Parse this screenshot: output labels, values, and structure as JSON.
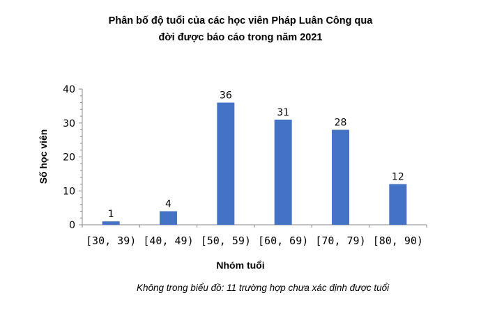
{
  "chart_data": {
    "type": "bar",
    "title_lines": [
      "Phân bố độ tuổi của các học viên Pháp Luân Công qua",
      "đời được báo cáo trong năm 2021"
    ],
    "xlabel": "Nhóm tuổi",
    "ylabel": "Số học viên",
    "categories": [
      "[30, 39)",
      "[40, 49)",
      "[50, 59)",
      "[60, 69)",
      "[70, 79)",
      "[80, 90)"
    ],
    "values": [
      1,
      4,
      36,
      31,
      28,
      12
    ],
    "ylim": [
      0,
      40
    ],
    "yticks": [
      0,
      10,
      20,
      30,
      40
    ],
    "bar_color": "#4472C4",
    "grid": false,
    "data_labels": true,
    "note": "Không trong biểu đồ: 11 trường hợp chưa xác định được tuổi"
  }
}
